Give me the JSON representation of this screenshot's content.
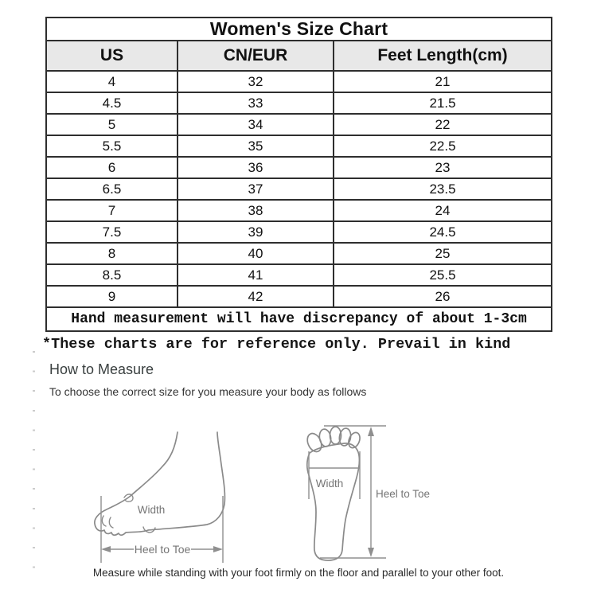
{
  "chart_data": {
    "type": "table",
    "title": "Women's Size Chart",
    "columns": [
      "US",
      "CN/EUR",
      "Feet Length(cm)"
    ],
    "rows": [
      [
        "4",
        "32",
        "21"
      ],
      [
        "4.5",
        "33",
        "21.5"
      ],
      [
        "5",
        "34",
        "22"
      ],
      [
        "5.5",
        "35",
        "22.5"
      ],
      [
        "6",
        "36",
        "23"
      ],
      [
        "6.5",
        "37",
        "23.5"
      ],
      [
        "7",
        "38",
        "24"
      ],
      [
        "7.5",
        "39",
        "24.5"
      ],
      [
        "8",
        "40",
        "25"
      ],
      [
        "8.5",
        "41",
        "25.5"
      ],
      [
        "9",
        "42",
        "26"
      ]
    ],
    "footer_note": "Hand measurement will have discrepancy of about 1-3cm"
  },
  "note": "*These charts are for reference only. Prevail in kind",
  "measure": {
    "heading": "How to Measure",
    "subheading": "To choose the correct size for you measure your body as follows",
    "caption": "Measure while standing with your foot firmly on the floor and parallel to your other foot.",
    "labels": {
      "width_side": "Width",
      "heel_to_toe_side": "Heel to Toe",
      "width_sole": "Width",
      "heel_to_toe_sole": "Heel to Toe"
    }
  },
  "colors": {
    "header_bg": "#e8e8e8",
    "table_border": "#2e2e2e",
    "diagram_stroke": "#8a8a8a",
    "diagram_label": "#757575"
  }
}
